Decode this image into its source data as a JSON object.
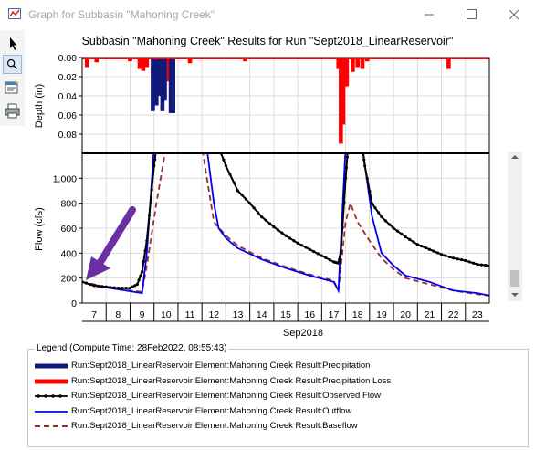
{
  "window": {
    "title": "Graph for Subbasin \"Mahoning Creek\""
  },
  "chart_title": "Subbasin \"Mahoning Creek\" Results for Run \"Sept2018_LinearReservoir\"",
  "icons": [
    "pointer-icon",
    "zoom-icon",
    "properties-icon",
    "print-icon"
  ],
  "chart_data": [
    {
      "type": "bar",
      "name": "depth",
      "ylabel": "Depth (in)",
      "y_inverted": true,
      "ylim": [
        0,
        0.1
      ],
      "yticks": [
        "0.00",
        "0.02",
        "0.04",
        "0.06",
        "0.08"
      ],
      "series": [
        {
          "name": "Run:Sept2018_LinearReservoir Element:Mahoning Creek Result:Precipitation Loss",
          "color": "#ff0000",
          "bars": [
            {
              "day": 6.7,
              "value": 0.01
            },
            {
              "day": 7.1,
              "value": 0.005
            },
            {
              "day": 8.5,
              "value": 0.004
            },
            {
              "day": 8.9,
              "value": 0.012
            },
            {
              "day": 9.05,
              "value": 0.014
            },
            {
              "day": 9.2,
              "value": 0.01
            },
            {
              "day": 9.5,
              "value": 0.038
            },
            {
              "day": 9.6,
              "value": 0.034
            },
            {
              "day": 9.7,
              "value": 0.03
            },
            {
              "day": 9.8,
              "value": 0.036
            },
            {
              "day": 9.9,
              "value": 0.038
            },
            {
              "day": 10.05,
              "value": 0.025
            },
            {
              "day": 10.3,
              "value": 0.005
            },
            {
              "day": 11.0,
              "value": 0.006
            },
            {
              "day": 13.3,
              "value": 0.004
            },
            {
              "day": 17.2,
              "value": 0.012
            },
            {
              "day": 17.3,
              "value": 0.09
            },
            {
              "day": 17.4,
              "value": 0.07
            },
            {
              "day": 17.55,
              "value": 0.03
            },
            {
              "day": 17.8,
              "value": 0.015
            },
            {
              "day": 18.0,
              "value": 0.01
            },
            {
              "day": 18.2,
              "value": 0.012
            },
            {
              "day": 18.4,
              "value": 0.004
            },
            {
              "day": 21.8,
              "value": 0.012
            }
          ]
        },
        {
          "name": "Run:Sept2018_LinearReservoir Element:Mahoning Creek Result:Precipitation",
          "color": "#0f1a7a",
          "bars": [
            {
              "day": 9.45,
              "value": 0.056
            },
            {
              "day": 9.6,
              "value": 0.05
            },
            {
              "day": 9.75,
              "value": 0.04
            },
            {
              "day": 9.85,
              "value": 0.056
            },
            {
              "day": 9.95,
              "value": 0.045
            },
            {
              "day": 10.2,
              "value": 0.058
            },
            {
              "day": 10.3,
              "value": 0.058
            }
          ]
        }
      ]
    },
    {
      "type": "line",
      "name": "flow",
      "ylabel": "Flow (cfs)",
      "xlabel": "Sep2018",
      "ylim": [
        0,
        1200
      ],
      "xlim": [
        6.5,
        23.5
      ],
      "yticks": [
        "0",
        "200",
        "400",
        "600",
        "800",
        "1,000"
      ],
      "categories": [
        "7",
        "8",
        "9",
        "10",
        "11",
        "12",
        "13",
        "14",
        "15",
        "16",
        "17",
        "18",
        "19",
        "20",
        "21",
        "22",
        "23"
      ],
      "series": [
        {
          "name": "Run:Sept2018_LinearReservoir Element:Mahoning Creek Result:Observed Flow",
          "color": "#000000",
          "style": "solid-dots",
          "points": [
            [
              6.5,
              170
            ],
            [
              7,
              140
            ],
            [
              7.5,
              130
            ],
            [
              8,
              120
            ],
            [
              8.5,
              120
            ],
            [
              8.8,
              150
            ],
            [
              9.0,
              250
            ],
            [
              9.2,
              500
            ],
            [
              9.5,
              1100
            ],
            [
              9.6,
              1250
            ],
            [
              12.2,
              1250
            ],
            [
              12.5,
              1100
            ],
            [
              13,
              900
            ],
            [
              13.5,
              800
            ],
            [
              14,
              690
            ],
            [
              14.5,
              610
            ],
            [
              15,
              540
            ],
            [
              15.5,
              480
            ],
            [
              16,
              430
            ],
            [
              16.5,
              380
            ],
            [
              17,
              330
            ],
            [
              17.2,
              320
            ],
            [
              17.3,
              400
            ],
            [
              17.5,
              1000
            ],
            [
              17.6,
              1250
            ],
            [
              18.2,
              1250
            ],
            [
              18.3,
              1100
            ],
            [
              18.6,
              800
            ],
            [
              19,
              690
            ],
            [
              19.5,
              600
            ],
            [
              20,
              530
            ],
            [
              20.5,
              470
            ],
            [
              21,
              430
            ],
            [
              21.5,
              390
            ],
            [
              22,
              360
            ],
            [
              22.5,
              340
            ],
            [
              23,
              310
            ],
            [
              23.5,
              300
            ]
          ]
        },
        {
          "name": "Run:Sept2018_LinearReservoir Element:Mahoning Creek Result:Outflow",
          "color": "#0000ee",
          "style": "solid",
          "points": [
            [
              6.5,
              170
            ],
            [
              7,
              140
            ],
            [
              8,
              110
            ],
            [
              9,
              80
            ],
            [
              9.2,
              400
            ],
            [
              9.5,
              1250
            ],
            [
              11.7,
              1250
            ],
            [
              12,
              800
            ],
            [
              12.2,
              600
            ],
            [
              12.5,
              520
            ],
            [
              13,
              440
            ],
            [
              14,
              350
            ],
            [
              15,
              280
            ],
            [
              16,
              220
            ],
            [
              17,
              170
            ],
            [
              17.2,
              100
            ],
            [
              17.5,
              1250
            ],
            [
              18.2,
              1250
            ],
            [
              18.6,
              700
            ],
            [
              19,
              400
            ],
            [
              19.5,
              300
            ],
            [
              20,
              220
            ],
            [
              21,
              170
            ],
            [
              22,
              100
            ],
            [
              23,
              80
            ],
            [
              23.5,
              60
            ]
          ]
        },
        {
          "name": "Run:Sept2018_LinearReservoir Element:Mahoning Creek Result:Baseflow",
          "color": "#9b2b2b",
          "style": "dashed",
          "points": [
            [
              6.5,
              170
            ],
            [
              7,
              150
            ],
            [
              8,
              110
            ],
            [
              9,
              90
            ],
            [
              9.2,
              300
            ],
            [
              9.6,
              800
            ],
            [
              10,
              1250
            ],
            [
              11.5,
              1250
            ],
            [
              12,
              650
            ],
            [
              12.5,
              540
            ],
            [
              13,
              460
            ],
            [
              14,
              360
            ],
            [
              15,
              290
            ],
            [
              16,
              230
            ],
            [
              17,
              180
            ],
            [
              17.2,
              100
            ],
            [
              17.5,
              650
            ],
            [
              17.7,
              800
            ],
            [
              18,
              650
            ],
            [
              18.5,
              500
            ],
            [
              19,
              360
            ],
            [
              19.5,
              270
            ],
            [
              20,
              200
            ],
            [
              21,
              150
            ],
            [
              22,
              100
            ],
            [
              23,
              70
            ],
            [
              23.5,
              60
            ]
          ]
        }
      ],
      "annotation": {
        "type": "arrow",
        "color": "#6b2fa3"
      }
    }
  ],
  "legend": {
    "caption": "Legend (Compute Time: 28Feb2022, 08:55:43)",
    "items": [
      {
        "label": "Run:Sept2018_LinearReservoir Element:Mahoning Creek Result:Precipitation",
        "color": "#0f1a7a",
        "style": "thick"
      },
      {
        "label": "Run:Sept2018_LinearReservoir Element:Mahoning Creek Result:Precipitation Loss",
        "color": "#ff0000",
        "style": "thick"
      },
      {
        "label": "Run:Sept2018_LinearReservoir Element:Mahoning Creek Result:Observed Flow",
        "color": "#000000",
        "style": "dots"
      },
      {
        "label": "Run:Sept2018_LinearReservoir Element:Mahoning Creek Result:Outflow",
        "color": "#0000ee",
        "style": "thin"
      },
      {
        "label": "Run:Sept2018_LinearReservoir Element:Mahoning Creek Result:Baseflow",
        "color": "#9b2b2b",
        "style": "dashed"
      }
    ]
  }
}
